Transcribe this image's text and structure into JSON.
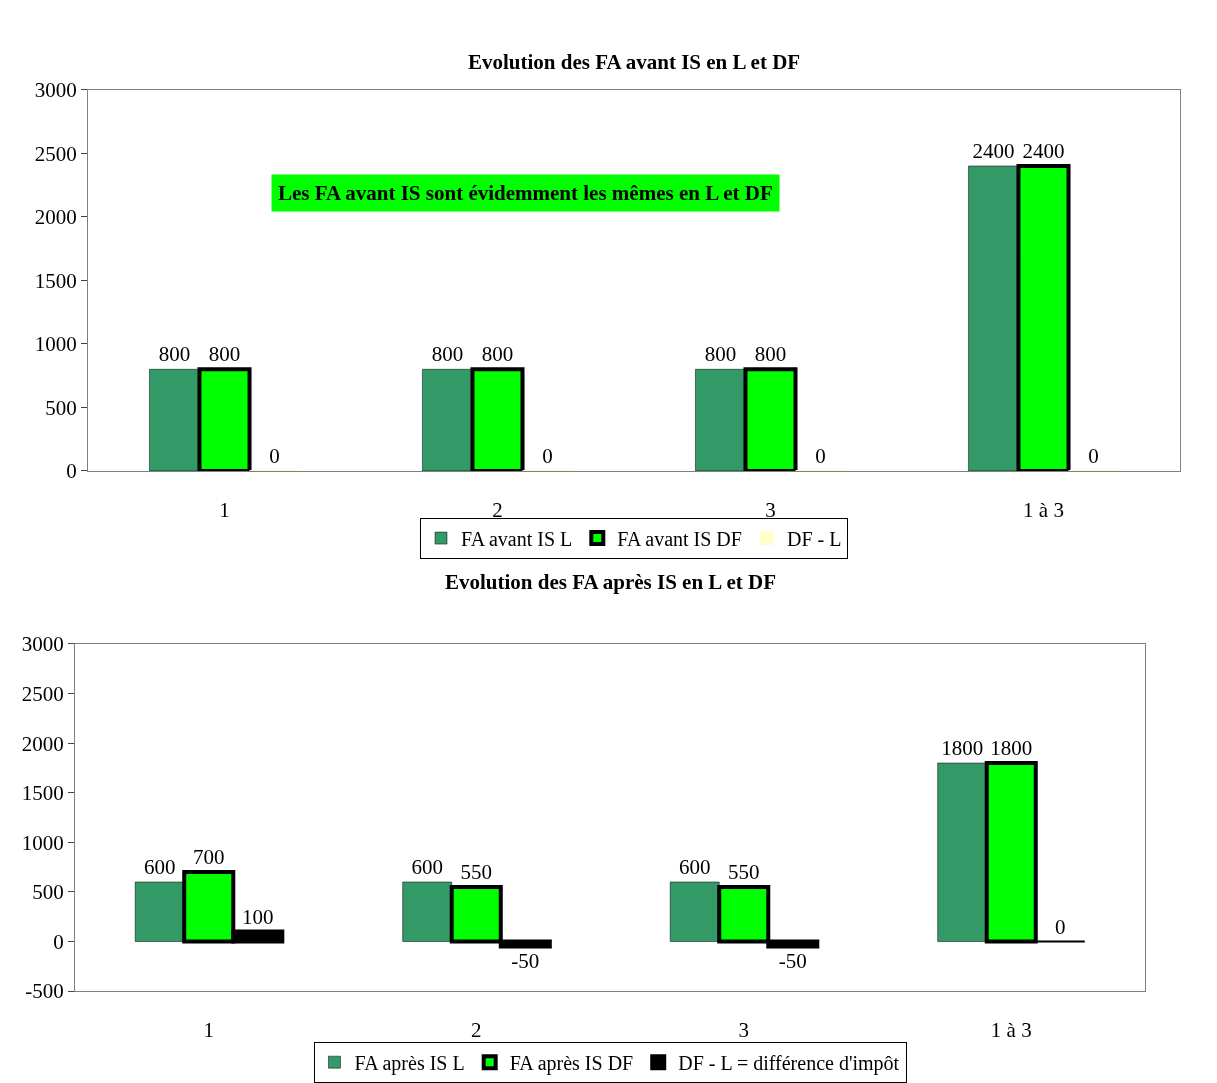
{
  "chart_data": [
    {
      "type": "bar",
      "title": "Evolution des FA avant IS en L et DF",
      "categories": [
        "1",
        "2",
        "3",
        "1 à 3"
      ],
      "series": [
        {
          "name": "FA avant IS L",
          "color": "#339966",
          "values": [
            800,
            800,
            800,
            2400
          ]
        },
        {
          "name": "FA avant IS DF",
          "color": "#00ff00",
          "values": [
            800,
            800,
            800,
            2400
          ]
        },
        {
          "name": "DF - L",
          "color": "#ffffcc",
          "values": [
            0,
            0,
            0,
            0
          ]
        }
      ],
      "ylim": [
        0,
        3000
      ],
      "yticks": [
        0,
        500,
        1000,
        1500,
        2000,
        2500,
        3000
      ],
      "grid": false,
      "legend": "bottom",
      "data_labels": true,
      "annotations": [
        "Les FA avant IS sont évidemment les mêmes en L et DF"
      ]
    },
    {
      "type": "bar",
      "title": "Evolution des FA après IS en L et DF",
      "categories": [
        "1",
        "2",
        "3",
        "1 à 3"
      ],
      "series": [
        {
          "name": "FA après IS L",
          "color": "#339966",
          "values": [
            600,
            600,
            600,
            1800
          ]
        },
        {
          "name": "FA après IS DF",
          "color": "#00ff00",
          "values": [
            700,
            550,
            550,
            1800
          ]
        },
        {
          "name": "DF - L = différence d'impôt",
          "color": "#000000",
          "values": [
            100,
            -50,
            -50,
            0
          ]
        }
      ],
      "ylim": [
        -500,
        3000
      ],
      "yticks": [
        -500,
        0,
        500,
        1000,
        1500,
        2000,
        2500,
        3000
      ],
      "grid": false,
      "legend": "bottom",
      "data_labels": true
    }
  ]
}
